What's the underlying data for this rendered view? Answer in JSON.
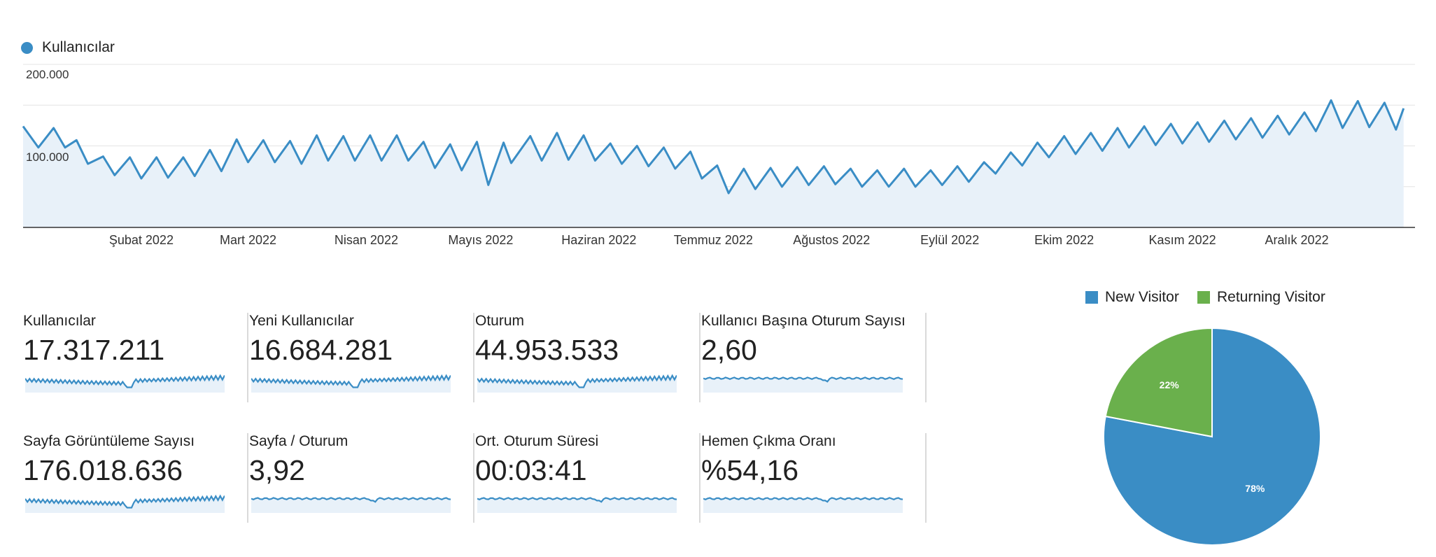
{
  "legend": {
    "label": "Kullanıcılar",
    "color": "#3a8dc5"
  },
  "chart_data": {
    "type": "area",
    "series_name": "Kullanıcılar",
    "ylim": [
      0,
      200000
    ],
    "y_ticks": [
      {
        "label": "200.000",
        "value": 200000
      },
      {
        "label": "100.000",
        "value": 100000
      }
    ],
    "x_labels": [
      "Şubat 2022",
      "Mart 2022",
      "Nisan 2022",
      "Mayıs 2022",
      "Haziran 2022",
      "Temmuz 2022",
      "Ağustos 2022",
      "Eylül 2022",
      "Ekim 2022",
      "Kasım 2022",
      "Aralık 2022"
    ],
    "x_label_days": [
      31,
      59,
      90,
      120,
      151,
      181,
      212,
      243,
      273,
      304,
      334
    ],
    "days": 365,
    "weekly_peaks": [
      [
        0,
        124000
      ],
      [
        8,
        122000
      ],
      [
        14,
        107000
      ],
      [
        21,
        87000
      ],
      [
        28,
        86000
      ],
      [
        35,
        86000
      ],
      [
        42,
        86000
      ],
      [
        49,
        95000
      ],
      [
        56,
        108000
      ],
      [
        63,
        107000
      ],
      [
        70,
        106000
      ],
      [
        77,
        113000
      ],
      [
        84,
        112000
      ],
      [
        91,
        113000
      ],
      [
        98,
        113000
      ],
      [
        105,
        105000
      ],
      [
        112,
        102000
      ],
      [
        119,
        105000
      ],
      [
        126,
        104000
      ],
      [
        133,
        112000
      ],
      [
        140,
        116000
      ],
      [
        147,
        113000
      ],
      [
        154,
        103000
      ],
      [
        161,
        100000
      ],
      [
        168,
        98000
      ],
      [
        175,
        93000
      ],
      [
        182,
        76000
      ],
      [
        189,
        72000
      ],
      [
        196,
        73000
      ],
      [
        203,
        74000
      ],
      [
        210,
        75000
      ],
      [
        217,
        72000
      ],
      [
        224,
        70000
      ],
      [
        231,
        72000
      ],
      [
        238,
        70000
      ],
      [
        245,
        75000
      ],
      [
        252,
        80000
      ],
      [
        259,
        92000
      ],
      [
        266,
        104000
      ],
      [
        273,
        112000
      ],
      [
        280,
        116000
      ],
      [
        287,
        122000
      ],
      [
        294,
        124000
      ],
      [
        301,
        127000
      ],
      [
        308,
        129000
      ],
      [
        315,
        131000
      ],
      [
        322,
        134000
      ],
      [
        329,
        137000
      ],
      [
        336,
        141000
      ],
      [
        343,
        156000
      ],
      [
        350,
        155000
      ],
      [
        357,
        153000
      ],
      [
        362,
        146000
      ]
    ],
    "weekly_troughs": [
      [
        4,
        98000
      ],
      [
        11,
        98000
      ],
      [
        17,
        78000
      ],
      [
        24,
        64000
      ],
      [
        31,
        60000
      ],
      [
        38,
        61000
      ],
      [
        45,
        63000
      ],
      [
        52,
        69000
      ],
      [
        59,
        80000
      ],
      [
        66,
        80000
      ],
      [
        73,
        78000
      ],
      [
        80,
        82000
      ],
      [
        87,
        82000
      ],
      [
        94,
        82000
      ],
      [
        101,
        82000
      ],
      [
        108,
        73000
      ],
      [
        115,
        70000
      ],
      [
        122,
        52000
      ],
      [
        128,
        79000
      ],
      [
        136,
        82000
      ],
      [
        143,
        83000
      ],
      [
        150,
        82000
      ],
      [
        157,
        78000
      ],
      [
        164,
        75000
      ],
      [
        171,
        72000
      ],
      [
        178,
        60000
      ],
      [
        185,
        42000
      ],
      [
        192,
        47000
      ],
      [
        199,
        50000
      ],
      [
        206,
        52000
      ],
      [
        213,
        53000
      ],
      [
        220,
        50000
      ],
      [
        227,
        50000
      ],
      [
        234,
        50000
      ],
      [
        241,
        52000
      ],
      [
        248,
        56000
      ],
      [
        255,
        66000
      ],
      [
        262,
        76000
      ],
      [
        269,
        86000
      ],
      [
        276,
        90000
      ],
      [
        283,
        94000
      ],
      [
        290,
        98000
      ],
      [
        297,
        101000
      ],
      [
        304,
        103000
      ],
      [
        311,
        105000
      ],
      [
        318,
        108000
      ],
      [
        325,
        110000
      ],
      [
        332,
        114000
      ],
      [
        339,
        118000
      ],
      [
        346,
        122000
      ],
      [
        353,
        123000
      ],
      [
        360,
        120000
      ]
    ]
  },
  "metrics": [
    {
      "label": "Kullanıcılar",
      "value": "17.317.211",
      "spark": "weekly"
    },
    {
      "label": "Yeni Kullanıcılar",
      "value": "16.684.281",
      "spark": "weekly"
    },
    {
      "label": "Oturum",
      "value": "44.953.533",
      "spark": "weekly"
    },
    {
      "label": "Kullanıcı Başına Oturum Sayısı",
      "value": "2,60",
      "spark": "flat"
    },
    {
      "label": "Sayfa Görüntüleme Sayısı",
      "value": "176.018.636",
      "spark": "weekly"
    },
    {
      "label": "Sayfa / Oturum",
      "value": "3,92",
      "spark": "flat"
    },
    {
      "label": "Ort. Oturum Süresi",
      "value": "00:03:41",
      "spark": "flat"
    },
    {
      "label": "Hemen Çıkma Oranı",
      "value": "%54,16",
      "spark": "flat"
    }
  ],
  "pie": {
    "slices": [
      {
        "name": "New Visitor",
        "value": 78,
        "label": "78%",
        "color": "#3a8dc5"
      },
      {
        "name": "Returning Visitor",
        "value": 22,
        "label": "22%",
        "color": "#6ab04c"
      }
    ]
  },
  "colors": {
    "line": "#3a8dc5",
    "area": "#e8f1f9",
    "grid": "#e4e4e4"
  }
}
